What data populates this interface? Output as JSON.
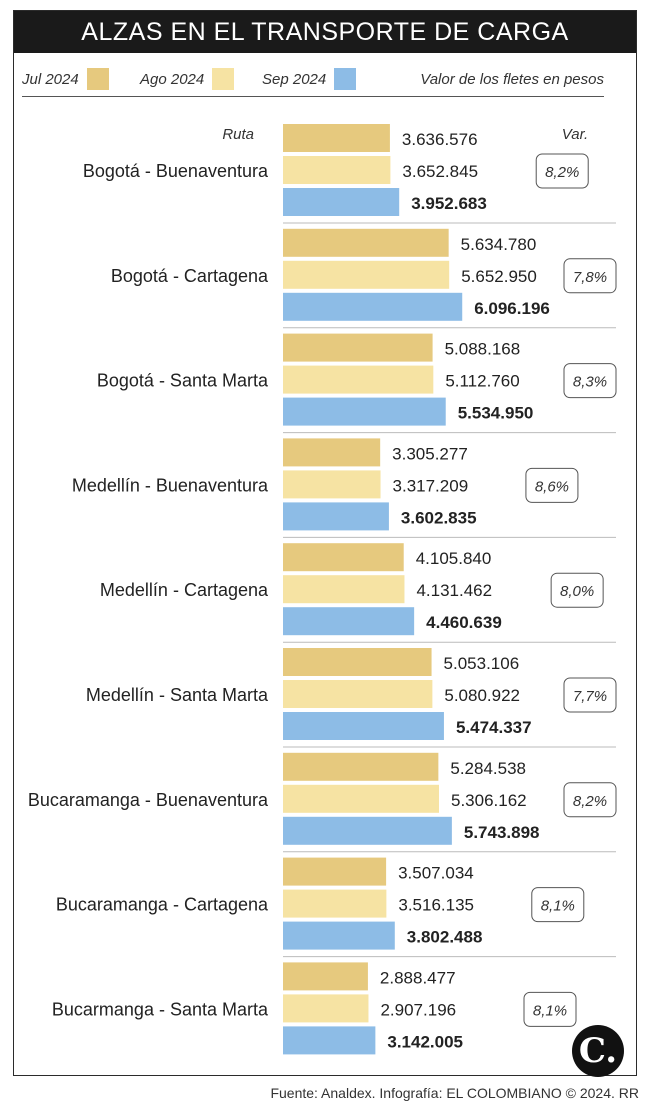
{
  "title": "ALZAS EN EL TRANSPORTE DE CARGA",
  "legend": {
    "items": [
      {
        "label": "Jul 2024",
        "color": "#e6c97e"
      },
      {
        "label": "Ago 2024",
        "color": "#f6e3a3"
      },
      {
        "label": "Sep 2024",
        "color": "#8dbce6"
      }
    ],
    "note": "Valor de los fletes en pesos"
  },
  "headers": {
    "route": "Ruta",
    "var": "Var."
  },
  "chart_data": {
    "type": "bar",
    "orientation": "horizontal",
    "title": "ALZAS EN EL TRANSPORTE DE CARGA",
    "categories": [
      "Bogotá - Buenaventura",
      "Bogotá - Cartagena",
      "Bogotá - Santa Marta",
      "Medellín - Buenaventura",
      "Medellín - Cartagena",
      "Medellín - Santa Marta",
      "Bucaramanga - Buenaventura",
      "Bucaramanga - Cartagena",
      "Bucarmanga - Santa Marta"
    ],
    "series": [
      {
        "name": "Jul 2024",
        "color": "#e6c97e",
        "values": [
          3636576,
          5634780,
          5088168,
          3305277,
          4105840,
          5053106,
          5284538,
          3507034,
          2888477
        ],
        "labels": [
          "3.636.576",
          "5.634.780",
          "5.088.168",
          "3.305.277",
          "4.105.840",
          "5.053.106",
          "5.284.538",
          "3.507.034",
          "2.888.477"
        ]
      },
      {
        "name": "Ago 2024",
        "color": "#f6e3a3",
        "values": [
          3652845,
          5652950,
          5112760,
          3317209,
          4131462,
          5080922,
          5306162,
          3516135,
          2907196
        ],
        "labels": [
          "3.652.845",
          "5.652.950",
          "5.112.760",
          "3.317.209",
          "4.131.462",
          "5.080.922",
          "5.306.162",
          "3.516.135",
          "2.907.196"
        ]
      },
      {
        "name": "Sep 2024",
        "color": "#8dbce6",
        "values": [
          3952683,
          6096196,
          5534950,
          3602835,
          4460639,
          5474337,
          5743898,
          3802488,
          3142005
        ],
        "labels": [
          "3.952.683",
          "6.096.196",
          "5.534.950",
          "3.602.835",
          "4.460.639",
          "5.474.337",
          "5.743.898",
          "3.802.488",
          "3.142.005"
        ]
      }
    ],
    "variation": [
      "8,2%",
      "7,8%",
      "8,3%",
      "8,6%",
      "8,0%",
      "7,7%",
      "8,2%",
      "8,1%",
      "8,1%"
    ]
  },
  "logo": "C.",
  "source": "Fuente: Analdex. Infografía: EL COLOMBIANO © 2024. RR"
}
